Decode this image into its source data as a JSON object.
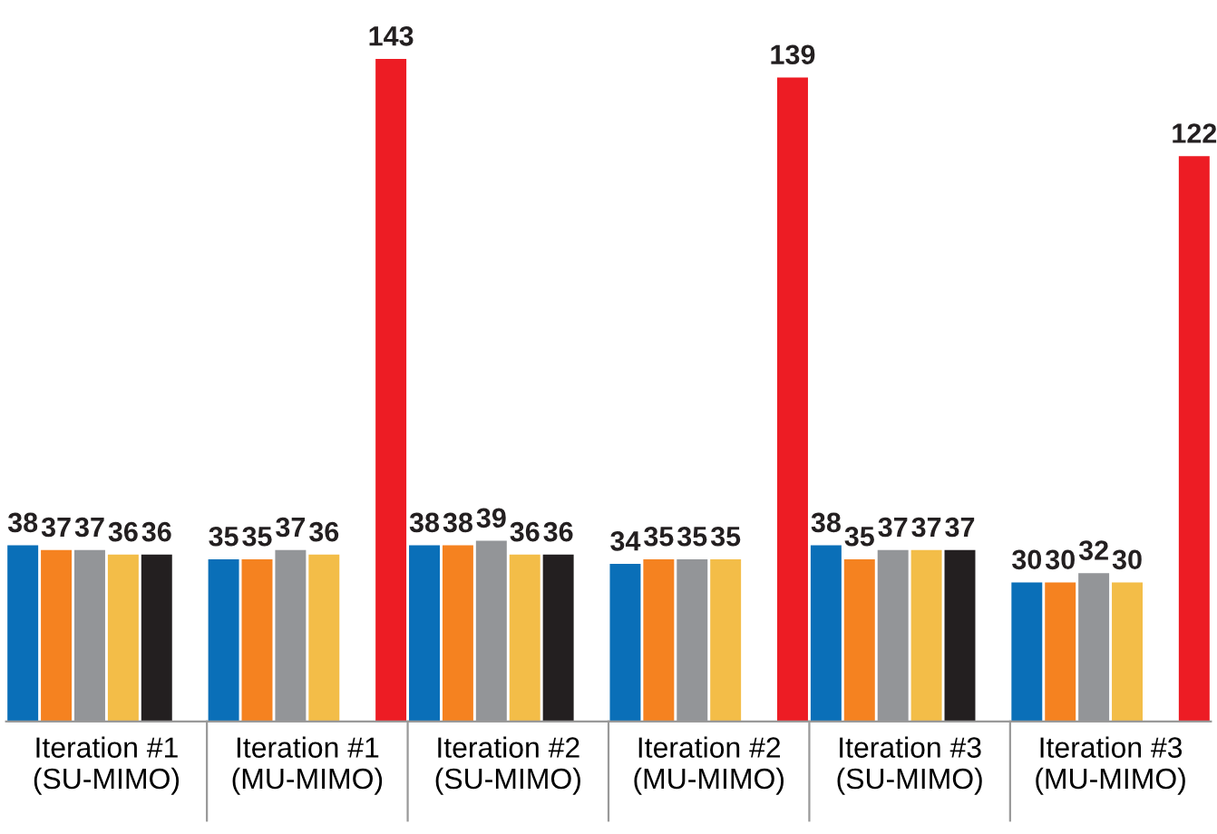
{
  "chart_data": {
    "type": "bar",
    "categories": [
      "Iteration #1\n(SU-MIMO)",
      "Iteration #1\n(MU-MIMO)",
      "Iteration #2\n(SU-MIMO)",
      "Iteration #2\n(MU-MIMO)",
      "Iteration #3\n(SU-MIMO)",
      "Iteration #3\n(MU-MIMO)"
    ],
    "series": [
      {
        "color": "#0a6fb8",
        "values": [
          38,
          35,
          38,
          34,
          38,
          30
        ]
      },
      {
        "color": "#f58220",
        "values": [
          37,
          35,
          38,
          35,
          35,
          30
        ]
      },
      {
        "color": "#939598",
        "values": [
          37,
          37,
          39,
          35,
          37,
          32
        ]
      },
      {
        "color": "#f3bd48",
        "values": [
          36,
          36,
          36,
          35,
          37,
          30
        ]
      },
      {
        "color": "#231f20",
        "values": [
          36,
          null,
          36,
          null,
          37,
          null
        ]
      },
      {
        "color": "#ed1c24",
        "values": [
          null,
          143,
          null,
          139,
          null,
          122
        ]
      }
    ],
    "data_labels": true,
    "legend": false,
    "grid": false
  }
}
